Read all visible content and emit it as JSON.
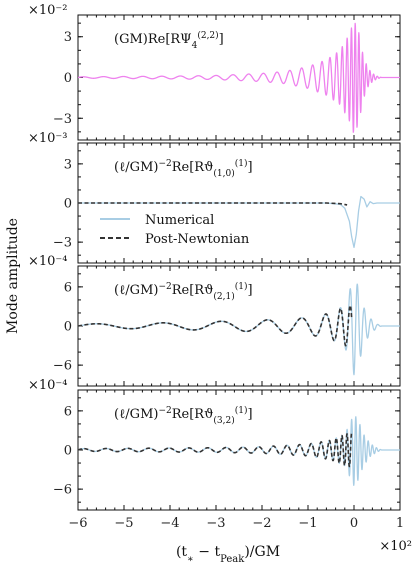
{
  "figure": {
    "ylabel": "Mode amplitude",
    "xlabel": "(t∗ − tPeak)/GM",
    "x_exponent": "×10²",
    "x_ticks": [
      -6,
      -5,
      -4,
      -3,
      -2,
      -1,
      0,
      1
    ],
    "x_tick_labels": [
      "−6",
      "−5",
      "−4",
      "−3",
      "−2",
      "−1",
      "0",
      "1"
    ],
    "xlim": [
      -6,
      1
    ]
  },
  "legend": {
    "numerical": "Numerical",
    "post_newtonian": "Post-Newtonian"
  },
  "colors": {
    "magenta": "#ee82ee",
    "light_blue": "#a8cde4",
    "dashed": "#333333"
  },
  "chart_data": [
    {
      "type": "line",
      "panel": 1,
      "label": "(GM)Re[RΨ₄⁽²˒²⁾]",
      "y_exponent": "×10⁻²",
      "ylim": [
        -4.6,
        4.6
      ],
      "y_ticks": [
        3,
        0,
        -3
      ],
      "y_tick_labels": [
        "3",
        "0",
        "−3"
      ],
      "series": [
        {
          "color": "magenta",
          "style": "solid",
          "envelope": [
            [
              -6,
              0.05
            ],
            [
              -4,
              0.1
            ],
            [
              -3,
              0.15
            ],
            [
              -2,
              0.3
            ],
            [
              -1.5,
              0.45
            ],
            [
              -1,
              0.8
            ],
            [
              -0.6,
              1.3
            ],
            [
              -0.3,
              2.0
            ],
            [
              -0.1,
              3.2
            ],
            [
              0.0,
              4.2
            ],
            [
              0.1,
              3.4
            ],
            [
              0.2,
              1.6
            ],
            [
              0.3,
              0.7
            ],
            [
              0.4,
              0.3
            ],
            [
              0.5,
              0.1
            ],
            [
              0.6,
              0.0
            ],
            [
              1,
              0
            ]
          ],
          "period": [
            [
              -6,
              0.45
            ],
            [
              -3,
              0.38
            ],
            [
              -1,
              0.24
            ],
            [
              -0.3,
              0.12
            ],
            [
              0,
              0.08
            ],
            [
              1,
              0.08
            ]
          ]
        }
      ]
    },
    {
      "type": "line",
      "panel": 2,
      "label": "(ℓ/GM)⁻²Re[Rϑ⁽¹⁾₍₁,₀₎]",
      "y_exponent": "×10⁻³",
      "ylim": [
        -4.6,
        4.6
      ],
      "y_ticks": [
        3,
        0,
        -3
      ],
      "y_tick_labels": [
        "3",
        "0",
        "−3"
      ],
      "series": [
        {
          "name": "Numerical",
          "color": "light_blue",
          "style": "solid",
          "points": [
            [
              -6,
              0
            ],
            [
              -0.6,
              0
            ],
            [
              -0.3,
              -0.1
            ],
            [
              -0.2,
              -0.4
            ],
            [
              -0.1,
              -1.4
            ],
            [
              -0.05,
              -2.6
            ],
            [
              0.0,
              -3.4
            ],
            [
              0.05,
              -2.4
            ],
            [
              0.1,
              -0.6
            ],
            [
              0.15,
              0.5
            ],
            [
              0.22,
              0.3
            ],
            [
              0.28,
              -0.3
            ],
            [
              0.35,
              0.1
            ],
            [
              0.42,
              -0.05
            ],
            [
              0.5,
              0
            ],
            [
              1,
              0
            ]
          ]
        },
        {
          "name": "Post-Newtonian",
          "color": "dashed",
          "style": "dashed",
          "points": [
            [
              -6,
              0
            ],
            [
              -0.6,
              0
            ],
            [
              -0.3,
              -0.05
            ],
            [
              -0.15,
              -0.15
            ]
          ]
        }
      ]
    },
    {
      "type": "line",
      "panel": 3,
      "label": "(ℓ/GM)⁻²Re[Rϑ⁽¹⁾₍₂,₁₎]",
      "y_exponent": "×10⁻⁴",
      "ylim": [
        -9.2,
        9.2
      ],
      "y_ticks": [
        6,
        0,
        -6
      ],
      "y_tick_labels": [
        "6",
        "0",
        "−6"
      ],
      "series": [
        {
          "name": "Numerical",
          "color": "light_blue",
          "style": "solid",
          "envelope": [
            [
              -6,
              0.3
            ],
            [
              -4,
              0.5
            ],
            [
              -3,
              0.7
            ],
            [
              -2,
              0.9
            ],
            [
              -1,
              1.3
            ],
            [
              -0.5,
              2.0
            ],
            [
              -0.2,
              3.2
            ],
            [
              0,
              7.5
            ],
            [
              0.1,
              6.0
            ],
            [
              0.2,
              3.0
            ],
            [
              0.35,
              1.2
            ],
            [
              0.5,
              0.3
            ],
            [
              0.6,
              0
            ],
            [
              1,
              0
            ]
          ],
          "period": [
            [
              -6,
              1.6
            ],
            [
              -3,
              1.2
            ],
            [
              -1,
              0.6
            ],
            [
              -0.3,
              0.25
            ],
            [
              0,
              0.15
            ],
            [
              1,
              0.15
            ]
          ]
        },
        {
          "name": "Post-Newtonian",
          "color": "dashed",
          "style": "dashed",
          "envelope": [
            [
              -6,
              0.3
            ],
            [
              -4,
              0.5
            ],
            [
              -3,
              0.7
            ],
            [
              -2,
              0.9
            ],
            [
              -1,
              1.3
            ],
            [
              -0.5,
              2.0
            ],
            [
              -0.2,
              3.0
            ],
            [
              -0.05,
              3.2
            ]
          ],
          "period": [
            [
              -6,
              1.6
            ],
            [
              -3,
              1.2
            ],
            [
              -1,
              0.6
            ],
            [
              -0.3,
              0.25
            ],
            [
              0,
              0.15
            ]
          ],
          "x_end": -0.05
        }
      ]
    },
    {
      "type": "line",
      "panel": 4,
      "label": "(ℓ/GM)⁻²Re[Rϑ⁽¹⁾₍₃,₂₎]",
      "y_exponent": "×10⁻⁴",
      "ylim": [
        -9.2,
        9.2
      ],
      "y_ticks": [
        6,
        0,
        -6
      ],
      "y_tick_labels": [
        "6",
        "0",
        "−6"
      ],
      "series": [
        {
          "name": "Numerical",
          "color": "light_blue",
          "style": "solid",
          "envelope": [
            [
              -6,
              0.2
            ],
            [
              -4,
              0.3
            ],
            [
              -3,
              0.35
            ],
            [
              -2,
              0.5
            ],
            [
              -1,
              0.9
            ],
            [
              -0.5,
              1.5
            ],
            [
              -0.2,
              2.4
            ],
            [
              0,
              5.5
            ],
            [
              0.1,
              4.5
            ],
            [
              0.2,
              2.5
            ],
            [
              0.35,
              1.0
            ],
            [
              0.5,
              0.3
            ],
            [
              0.6,
              0
            ],
            [
              1,
              0
            ]
          ],
          "period": [
            [
              -6,
              0.5
            ],
            [
              -3,
              0.4
            ],
            [
              -1,
              0.25
            ],
            [
              -0.3,
              0.12
            ],
            [
              0,
              0.09
            ],
            [
              1,
              0.09
            ]
          ]
        },
        {
          "name": "Post-Newtonian",
          "color": "dashed",
          "style": "dashed",
          "envelope": [
            [
              -6,
              0.2
            ],
            [
              -4,
              0.3
            ],
            [
              -3,
              0.35
            ],
            [
              -2,
              0.5
            ],
            [
              -1,
              0.9
            ],
            [
              -0.5,
              1.5
            ],
            [
              -0.2,
              2.4
            ],
            [
              -0.05,
              2.6
            ]
          ],
          "period": [
            [
              -6,
              0.5
            ],
            [
              -3,
              0.4
            ],
            [
              -1,
              0.25
            ],
            [
              -0.3,
              0.12
            ],
            [
              0,
              0.09
            ]
          ],
          "x_end": -0.05
        }
      ]
    }
  ]
}
